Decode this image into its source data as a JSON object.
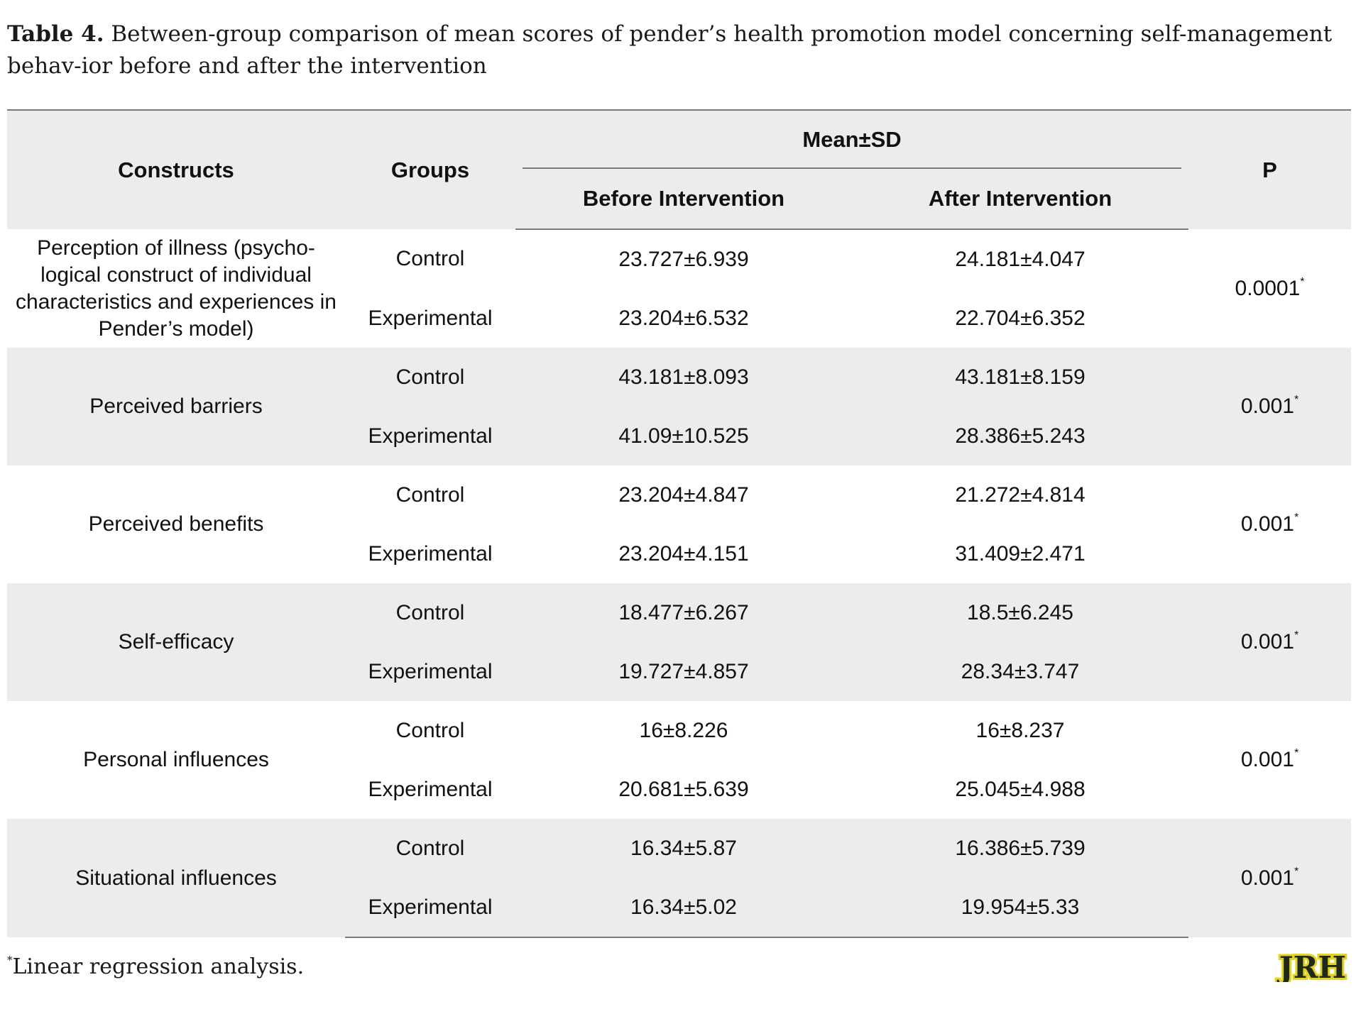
{
  "caption": {
    "label": "Table 4.",
    "text": "Between-group comparison of mean scores of pender’s health promotion model concerning self-management behav-ior before and after the intervention"
  },
  "table": {
    "headers": {
      "constructs": "Constructs",
      "groups": "Groups",
      "meansd": "Mean±SD",
      "before": "Before Intervention",
      "after": "After Intervention",
      "p": "P"
    },
    "rows": [
      {
        "construct": "Perception of illness (psycho-logical construct of individual characteristics and experiences in Pender’s model)",
        "p": "0.0001",
        "p_mark": "*",
        "control": {
          "group": "Control",
          "before": "23.727±6.939",
          "after": "24.181±4.047"
        },
        "experimental": {
          "group": "Experimental",
          "before": "23.204±6.532",
          "after": "22.704±6.352"
        }
      },
      {
        "construct": "Perceived barriers",
        "p": "0.001",
        "p_mark": "*",
        "control": {
          "group": "Control",
          "before": "43.181±8.093",
          "after": "43.181±8.159"
        },
        "experimental": {
          "group": "Experimental",
          "before": "41.09±10.525",
          "after": "28.386±5.243"
        }
      },
      {
        "construct": "Perceived benefits",
        "p": "0.001",
        "p_mark": "*",
        "control": {
          "group": "Control",
          "before": "23.204±4.847",
          "after": "21.272±4.814"
        },
        "experimental": {
          "group": "Experimental",
          "before": "23.204±4.151",
          "after": "31.409±2.471"
        }
      },
      {
        "construct": "Self-efficacy",
        "p": "0.001",
        "p_mark": "*",
        "control": {
          "group": "Control",
          "before": "18.477±6.267",
          "after": "18.5±6.245"
        },
        "experimental": {
          "group": "Experimental",
          "before": "19.727±4.857",
          "after": "28.34±3.747"
        }
      },
      {
        "construct": "Personal influences",
        "p": "0.001",
        "p_mark": "*",
        "control": {
          "group": "Control",
          "before": "16±8.226",
          "after": "16±8.237"
        },
        "experimental": {
          "group": "Experimental",
          "before": "20.681±5.639",
          "after": "25.045±4.988"
        }
      },
      {
        "construct": "Situational influences",
        "p": "0.001",
        "p_mark": "*",
        "control": {
          "group": "Control",
          "before": "16.34±5.87",
          "after": "16.386±5.739"
        },
        "experimental": {
          "group": "Experimental",
          "before": "16.34±5.02",
          "after": "19.954±5.33"
        }
      }
    ]
  },
  "footnote": {
    "mark": "*",
    "text": "Linear regression analysis."
  },
  "logo": {
    "text": "JRH",
    "color_fill": "#1f2a1a",
    "color_accent": "#e3d21f"
  }
}
